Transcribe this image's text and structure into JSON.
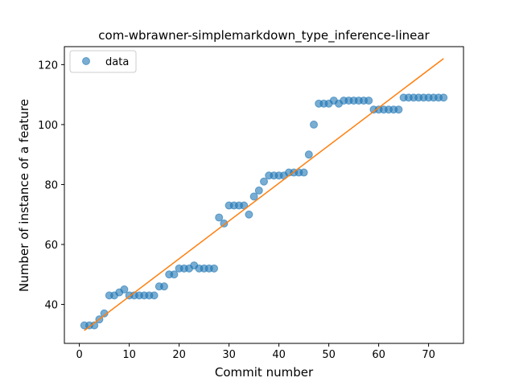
{
  "chart_data": {
    "type": "scatter",
    "title": "com-wbrawner-simplemarkdown_type_inference-linear",
    "xlabel": "Commit number",
    "ylabel": "Number of instance of a feature",
    "xlim": [
      -3,
      77
    ],
    "ylim": [
      27,
      126
    ],
    "xticks": [
      0,
      10,
      20,
      30,
      40,
      50,
      60,
      70
    ],
    "yticks": [
      40,
      60,
      80,
      100,
      120
    ],
    "grid": false,
    "legend": {
      "position": "top-left",
      "entries": [
        "data"
      ]
    },
    "series": [
      {
        "name": "data",
        "kind": "scatter",
        "color": "#1f77b4",
        "x": [
          1,
          2,
          3,
          4,
          5,
          6,
          7,
          8,
          9,
          10,
          11,
          12,
          13,
          14,
          15,
          16,
          17,
          18,
          19,
          20,
          21,
          22,
          23,
          24,
          25,
          26,
          27,
          28,
          29,
          30,
          31,
          32,
          33,
          34,
          35,
          36,
          37,
          38,
          39,
          40,
          41,
          42,
          43,
          44,
          45,
          46,
          47,
          48,
          49,
          50,
          51,
          52,
          53,
          54,
          55,
          56,
          57,
          58,
          59,
          60,
          61,
          62,
          63,
          64,
          65,
          66,
          67,
          68,
          69,
          70,
          71,
          72,
          73
        ],
        "y": [
          33,
          33,
          33,
          35,
          37,
          43,
          43,
          44,
          45,
          43,
          43,
          43,
          43,
          43,
          43,
          46,
          46,
          50,
          50,
          52,
          52,
          52,
          53,
          52,
          52,
          52,
          52,
          69,
          67,
          73,
          73,
          73,
          73,
          70,
          76,
          78,
          81,
          83,
          83,
          83,
          83,
          84,
          84,
          84,
          84,
          90,
          100,
          107,
          107,
          107,
          108,
          107,
          108,
          108,
          108,
          108,
          108,
          108,
          105,
          105,
          105,
          105,
          105,
          105,
          109,
          109,
          109,
          109,
          109,
          109,
          109,
          109,
          109
        ]
      },
      {
        "name": "",
        "kind": "line",
        "color": "#ff7f0e",
        "x": [
          1,
          73
        ],
        "y": [
          31.3,
          122
        ]
      }
    ]
  }
}
